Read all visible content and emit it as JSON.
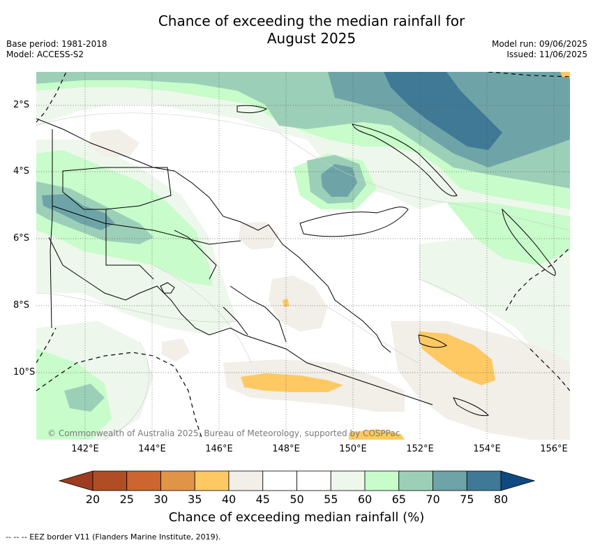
{
  "title_line1": "Chance of exceeding the median rainfall for",
  "title_line2": "August 2025",
  "base_period": "Base period: 1981-2018",
  "model": "Model: ACCESS-S2",
  "model_run": "Model run: 09/06/2025",
  "issued": "Issued: 11/06/2025",
  "lat_labels": [
    "2°S",
    "4°S",
    "6°S",
    "8°S",
    "10°S"
  ],
  "lon_labels": [
    "142°E",
    "144°E",
    "146°E",
    "148°E",
    "150°E",
    "152°E",
    "154°E",
    "156°E"
  ],
  "copyright": "© Commonwealth of Australia 2025, Bureau of Meteorology, supported by COSPPac",
  "colorbar": {
    "title": "Chance of exceeding median rainfall (%)",
    "ticks": [
      "20",
      "25",
      "30",
      "35",
      "40",
      "45",
      "50",
      "55",
      "60",
      "65",
      "70",
      "75",
      "80"
    ],
    "colors": [
      "#b14d25",
      "#cc6530",
      "#e09447",
      "#fec962",
      "#f2eee8",
      "#ffffff",
      "#ffffff",
      "#eef7ec",
      "#c8fccb",
      "#9ccfb8",
      "#6ea4a8",
      "#3f7995"
    ],
    "low_color": "#9e3c1f",
    "high_color": "#0d4a80"
  },
  "eez_legend": "-- -- -- EEZ border V11 (Flanders Marine Institute, 2019)."
}
